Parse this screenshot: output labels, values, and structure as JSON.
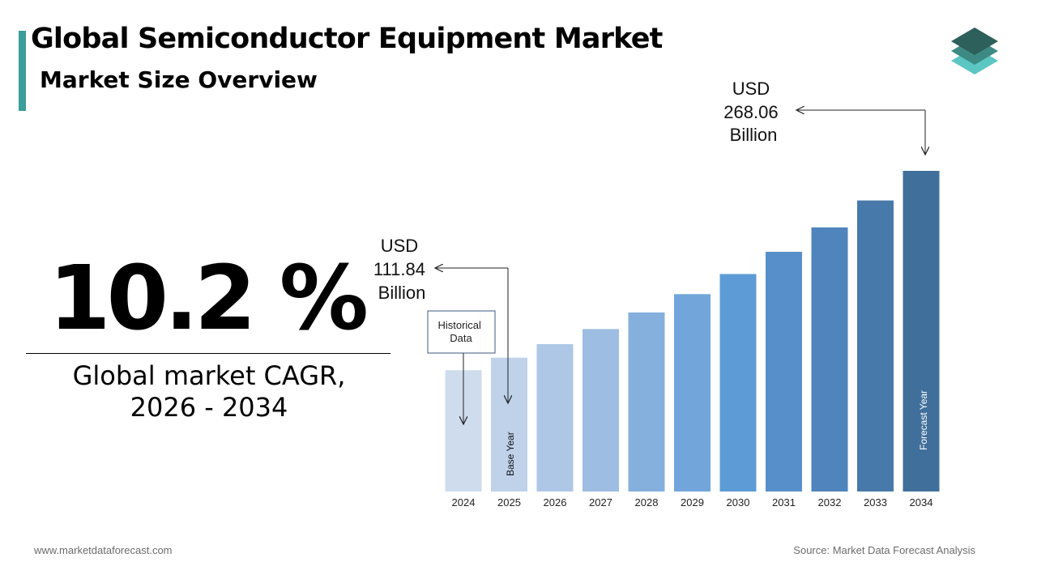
{
  "header": {
    "title": "Global Semiconductor Equipment Market",
    "subtitle": "Market Size Overview"
  },
  "kpi": {
    "cagr_value": "10.2 %",
    "label_line1": "Global market CAGR,",
    "label_line2": "2026 - 2034"
  },
  "annotations": {
    "start_value": [
      "USD",
      "111.84",
      "Billion"
    ],
    "end_value": [
      "USD",
      "268.06",
      "Billion"
    ],
    "historical_box": [
      "Historical",
      "Data"
    ],
    "base_year_label": "Base Year",
    "forecast_year_label": "Forecast Year"
  },
  "footer": {
    "website": "www.marketdataforecast.com",
    "source": "Source: Market Data Forecast Analysis"
  },
  "colors": {
    "accent": "#3a9e9a",
    "bars": [
      "#cfdcee",
      "#bfd2ea",
      "#aec7e6",
      "#9dbde2",
      "#85b0de",
      "#72a6da",
      "#5d9bd6",
      "#568fca",
      "#4f84bd",
      "#4879ab",
      "#416f9b",
      "#3c6690"
    ]
  },
  "chart_data": {
    "type": "bar",
    "categories": [
      "2024",
      "2025",
      "2026",
      "2027",
      "2028",
      "2029",
      "2030",
      "2031",
      "2032",
      "2033",
      "2034"
    ],
    "values": [
      101.4,
      111.84,
      123.2,
      135.8,
      149.7,
      165.0,
      181.8,
      200.4,
      220.8,
      243.3,
      268.06
    ],
    "title": "",
    "xlabel": "",
    "ylabel": "",
    "ylim": [
      0,
      268.06
    ],
    "grid": false,
    "legend": "none"
  }
}
